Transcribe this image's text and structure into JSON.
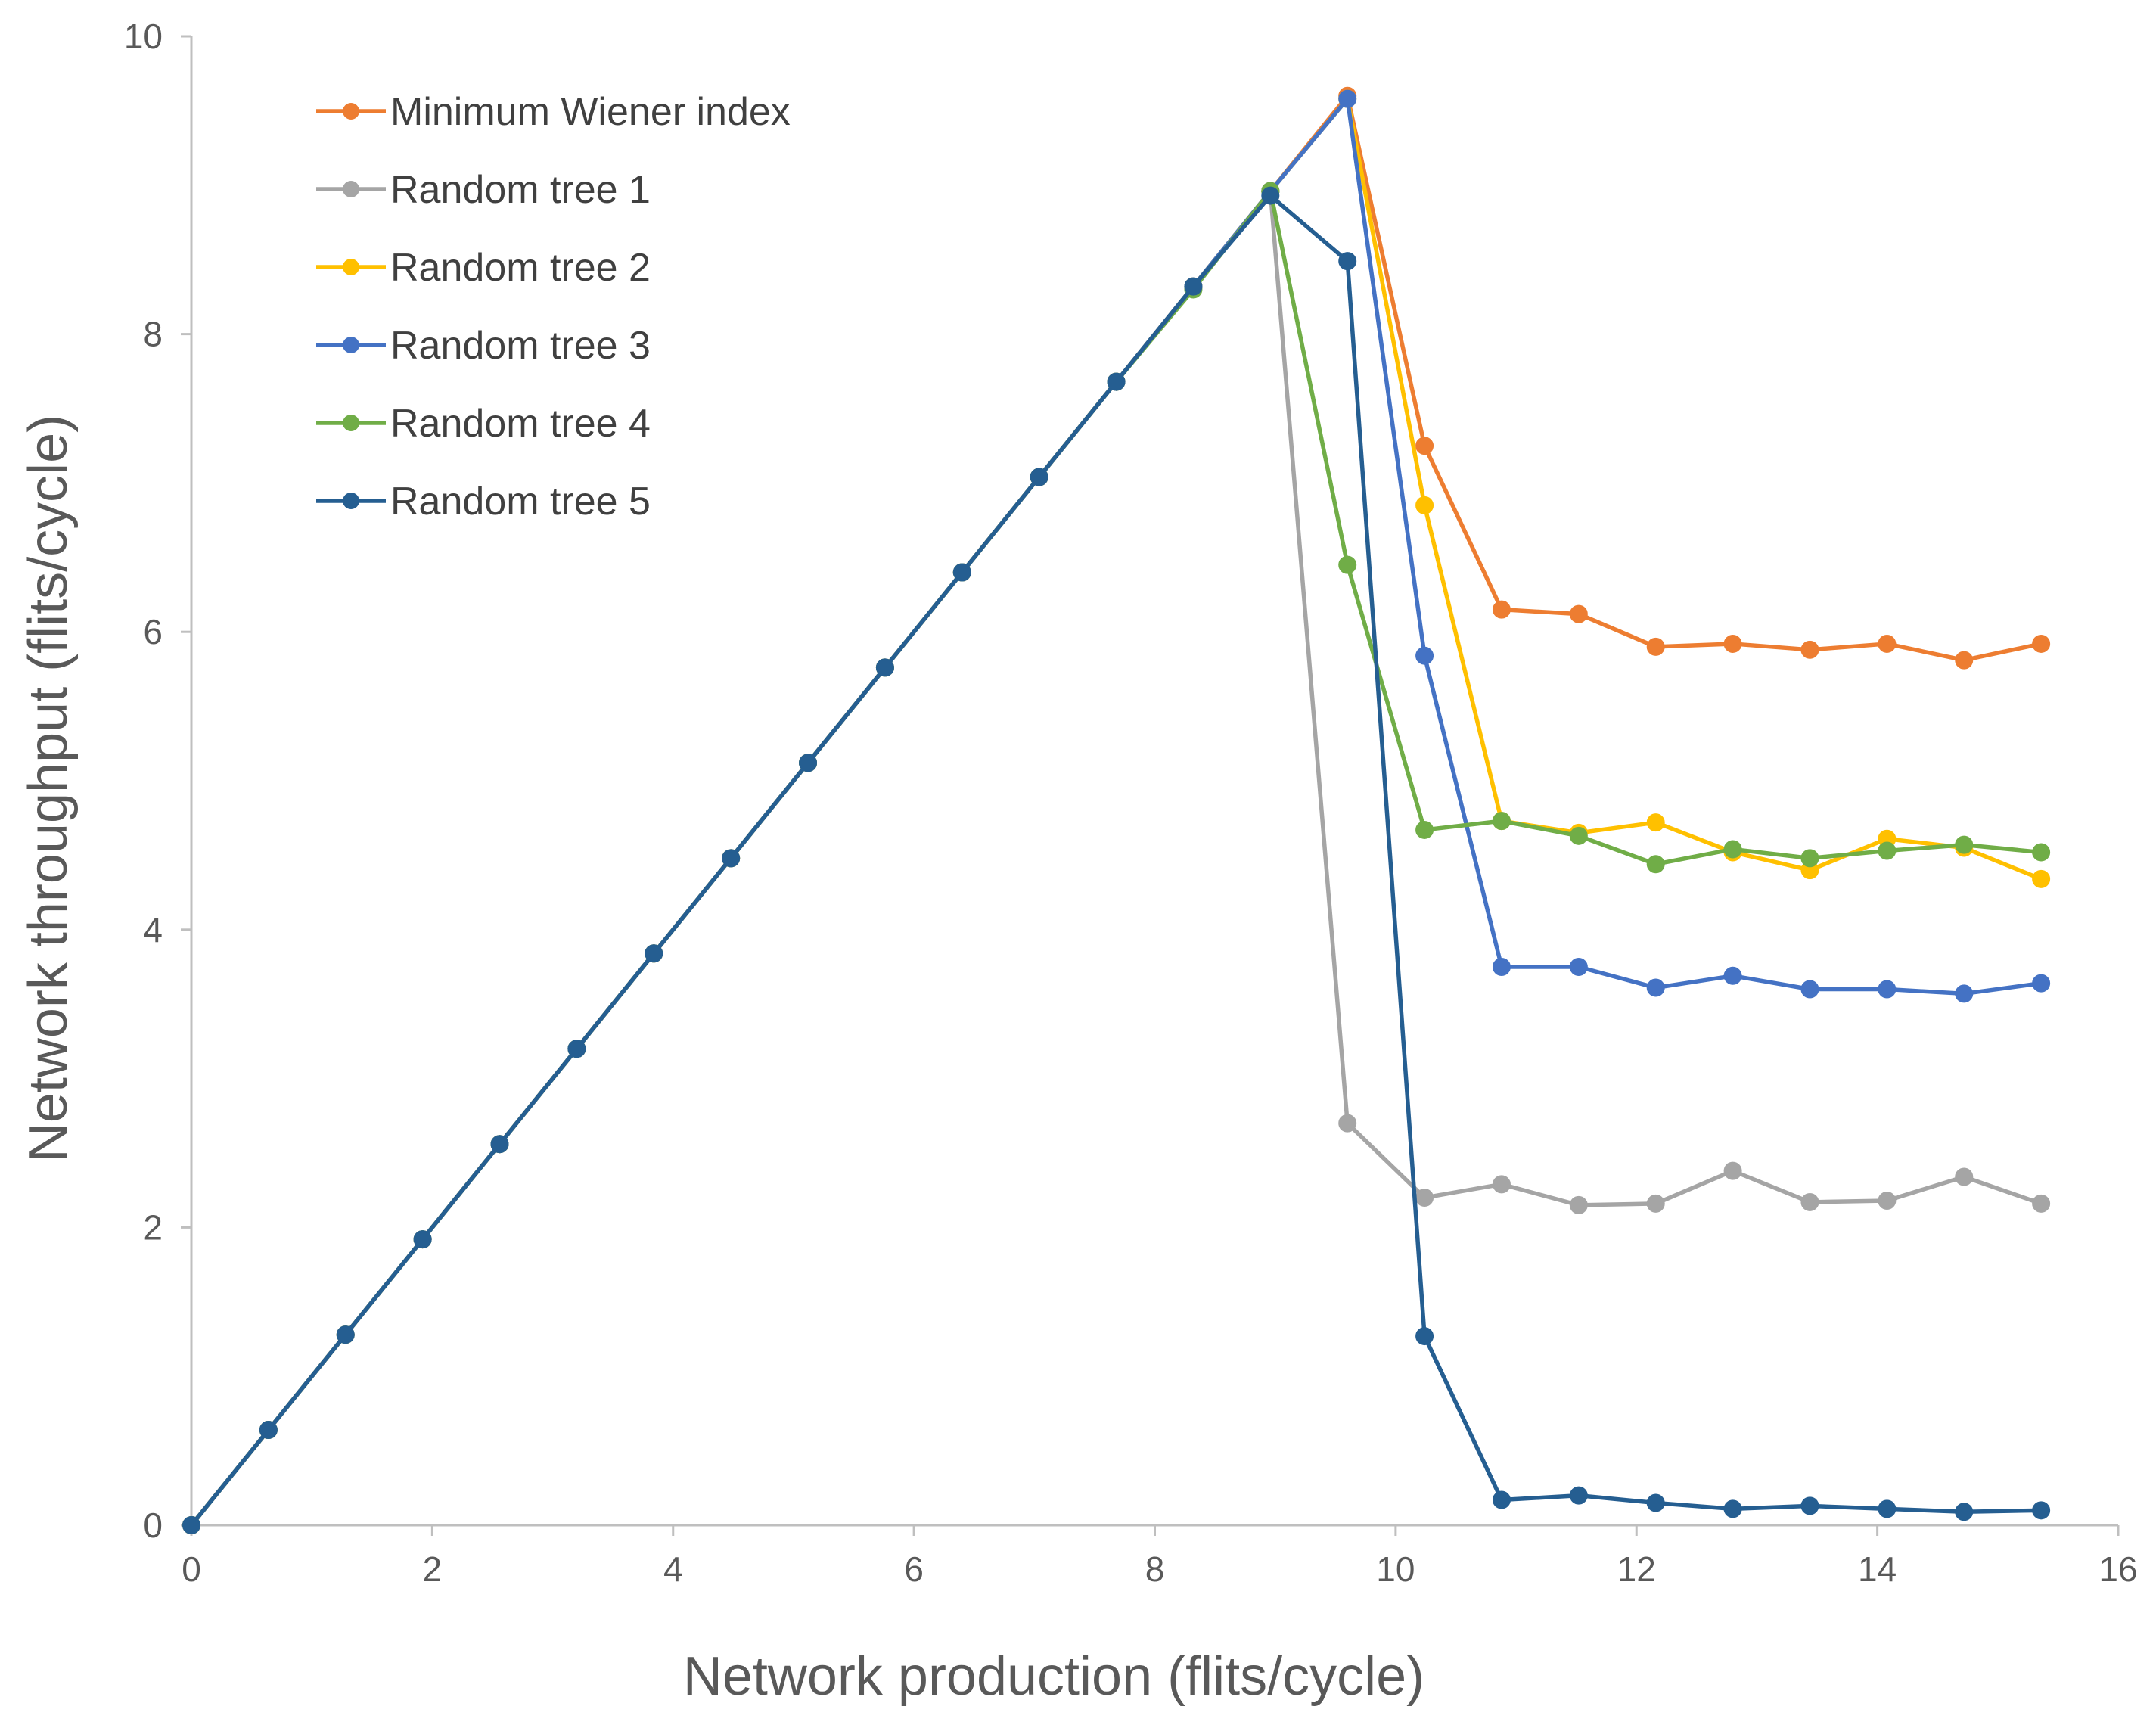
{
  "chart_data": {
    "type": "line",
    "title": "",
    "xlabel": "Network production (flits/cycle)",
    "ylabel": "Network throughput (flits/cycle)",
    "xlim": [
      0,
      16
    ],
    "ylim": [
      0,
      10
    ],
    "x_ticks": [
      "0",
      "2",
      "4",
      "6",
      "8",
      "10",
      "12",
      "14",
      "16"
    ],
    "y_ticks": [
      "0",
      "2",
      "4",
      "6",
      "8",
      "10"
    ],
    "grid": false,
    "legend_position": "top-left",
    "x": [
      0,
      0.64,
      1.28,
      1.92,
      2.56,
      3.2,
      3.84,
      4.48,
      5.12,
      5.76,
      6.4,
      7.04,
      7.68,
      8.32,
      8.96,
      9.6,
      10.24,
      10.88,
      11.52,
      12.16,
      12.8,
      13.44,
      14.08,
      14.72,
      15.36
    ],
    "series": [
      {
        "name": "Minimum Wiener index",
        "color": "#ED7D31",
        "values": [
          0,
          0.64,
          1.28,
          1.92,
          2.56,
          3.2,
          3.84,
          4.48,
          5.12,
          5.76,
          6.4,
          7.04,
          7.68,
          8.32,
          8.96,
          9.6,
          7.25,
          6.15,
          6.12,
          5.9,
          5.92,
          5.88,
          5.92,
          5.81,
          5.92
        ]
      },
      {
        "name": "Random tree 1",
        "color": "#A5A5A5",
        "values": [
          0,
          0.64,
          1.28,
          1.92,
          2.56,
          3.2,
          3.84,
          4.48,
          5.12,
          5.76,
          6.4,
          7.04,
          7.68,
          8.32,
          8.96,
          2.7,
          2.2,
          2.29,
          2.15,
          2.16,
          2.38,
          2.17,
          2.18,
          2.34,
          2.16
        ]
      },
      {
        "name": "Random tree 2",
        "color": "#FFC000",
        "values": [
          0,
          0.64,
          1.28,
          1.92,
          2.56,
          3.2,
          3.84,
          4.48,
          5.12,
          5.76,
          6.4,
          7.04,
          7.68,
          8.32,
          8.96,
          9.58,
          6.85,
          4.73,
          4.65,
          4.72,
          4.52,
          4.4,
          4.61,
          4.55,
          4.34
        ]
      },
      {
        "name": "Random tree 3",
        "color": "#4472C4",
        "values": [
          0,
          0.64,
          1.28,
          1.92,
          2.56,
          3.2,
          3.84,
          4.48,
          5.12,
          5.76,
          6.4,
          7.04,
          7.68,
          8.32,
          8.96,
          9.58,
          5.84,
          3.75,
          3.75,
          3.61,
          3.69,
          3.6,
          3.6,
          3.57,
          3.64
        ]
      },
      {
        "name": "Random tree 4",
        "color": "#70AD47",
        "values": [
          0,
          0.64,
          1.28,
          1.92,
          2.56,
          3.2,
          3.84,
          4.48,
          5.12,
          5.76,
          6.4,
          7.04,
          7.68,
          8.3,
          8.96,
          6.45,
          4.67,
          4.73,
          4.63,
          4.44,
          4.54,
          4.48,
          4.53,
          4.57,
          4.52
        ]
      },
      {
        "name": "Random tree 5",
        "color": "#255E91",
        "values": [
          0,
          0.64,
          1.28,
          1.92,
          2.56,
          3.2,
          3.84,
          4.48,
          5.12,
          5.76,
          6.4,
          7.04,
          7.68,
          8.32,
          8.93,
          8.49,
          1.27,
          0.17,
          0.2,
          0.15,
          0.11,
          0.13,
          0.11,
          0.09,
          0.1
        ]
      }
    ]
  }
}
